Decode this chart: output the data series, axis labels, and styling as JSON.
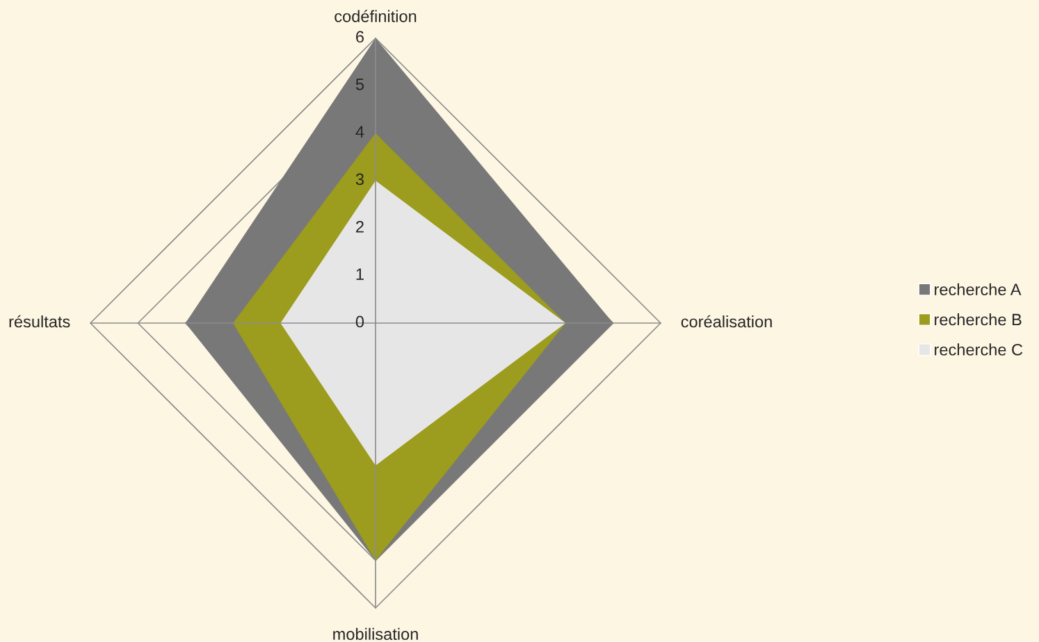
{
  "chart_data": {
    "type": "radar",
    "categories": [
      "codéfinition",
      "coréalisation",
      "mobilisation",
      "résultats"
    ],
    "series": [
      {
        "name": "recherche A",
        "color": "#787878",
        "values": [
          6,
          5,
          5,
          4
        ]
      },
      {
        "name": "recherche B",
        "color": "#9c9c1e",
        "values": [
          4,
          4,
          5,
          3
        ]
      },
      {
        "name": "recherche C",
        "color": "#e6e6e6",
        "values": [
          3,
          4,
          3,
          2
        ]
      }
    ],
    "ylim": [
      0,
      6
    ],
    "yticks": [
      0,
      1,
      2,
      3,
      4,
      5,
      6
    ],
    "grid": true,
    "legend": "right"
  }
}
